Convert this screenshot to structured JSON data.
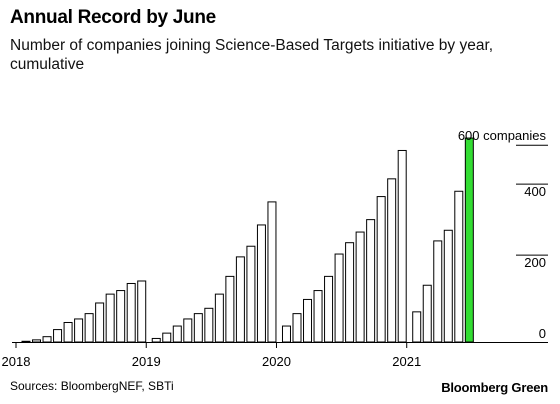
{
  "header": {
    "title": "Annual Record by June",
    "subtitle": "Number of companies joining Science-Based Targets initiative by year, cumulative"
  },
  "footer": {
    "source": "Sources: BloombergNEF, SBTi",
    "brand": "Bloomberg Green"
  },
  "colors": {
    "bar_fill": "#ffffff",
    "bar_stroke": "#000000",
    "highlight": "#33dd33",
    "axis": "#000000"
  },
  "chart_data": {
    "type": "bar",
    "title": "Annual Record by June",
    "subtitle": "Number of companies joining Science-Based Targets initiative by year, cumulative",
    "xlabel": "",
    "ylabel": "",
    "ylim": [
      0,
      640
    ],
    "y_ticks": [
      0,
      200,
      400
    ],
    "y_axis_side": "right",
    "top_annotation": "600 companies",
    "x_ticks": [
      "2018",
      "2019",
      "2020",
      "2021"
    ],
    "grid": false,
    "series": [
      {
        "year": "2018",
        "values": [
          2,
          6,
          15,
          35,
          55,
          65,
          80,
          110,
          135,
          145,
          165,
          172
        ]
      },
      {
        "year": "2019",
        "values": [
          10,
          25,
          45,
          65,
          80,
          95,
          135,
          185,
          240,
          270,
          330,
          395
        ]
      },
      {
        "year": "2020",
        "values": [
          45,
          80,
          120,
          145,
          185,
          248,
          280,
          310,
          345,
          410,
          460,
          540
        ]
      },
      {
        "year": "2021",
        "values": [
          85,
          160,
          285,
          315,
          425,
          575
        ]
      }
    ],
    "highlight": {
      "year": "2021",
      "index": 5
    }
  }
}
